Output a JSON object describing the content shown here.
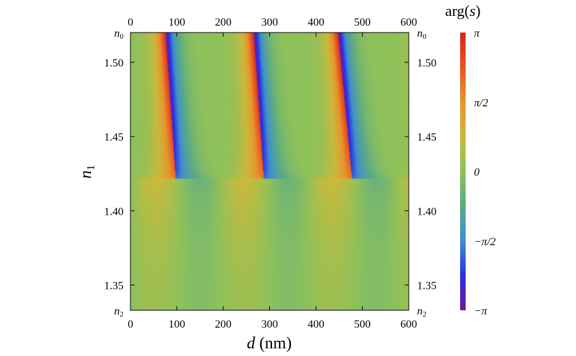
{
  "chart_data": {
    "type": "heatmap",
    "title": "arg(s)",
    "xlabel": "d (nm)",
    "ylabel": "n1",
    "xlim": [
      0,
      600
    ],
    "ylim": [
      1.333,
      1.52
    ],
    "x_ticks_bottom": [
      "0",
      "100",
      "200",
      "300",
      "400",
      "500",
      "600"
    ],
    "x_ticks_top": [
      "0",
      "100",
      "200",
      "300",
      "400",
      "500",
      "600"
    ],
    "y_ticks_left": [
      "1.35",
      "1.40",
      "1.45",
      "1.50"
    ],
    "y_ticks_right": [
      "1.35",
      "1.40",
      "1.45",
      "1.50"
    ],
    "y_tick_values": [
      1.35,
      1.4,
      1.45,
      1.5
    ],
    "y_edge_labels": {
      "top": "n0",
      "bottom": "n2"
    },
    "colorbar": {
      "min": -3.1416,
      "max": 3.1416,
      "tick_values": [
        3.1416,
        1.5708,
        0,
        -1.5708,
        -3.1416
      ],
      "tick_labels": [
        "π",
        "π/2",
        "0",
        "−π/2",
        "−π"
      ],
      "colors": [
        "#6a1b9a",
        "#2f2fe0",
        "#3f8fd0",
        "#5aaa88",
        "#8fc15a",
        "#c9b93c",
        "#e6962e",
        "#e8551f",
        "#d42a1a"
      ]
    },
    "singular_points": [
      {
        "d": 97,
        "n1": 1.422
      },
      {
        "d": 287,
        "n1": 1.422
      },
      {
        "d": 477,
        "n1": 1.422
      }
    ],
    "phase_branch_cuts": [
      {
        "d_top": 75,
        "d_bottom": 97
      },
      {
        "d_top": 265,
        "d_bottom": 287
      },
      {
        "d_top": 447,
        "d_bottom": 477
      }
    ]
  }
}
